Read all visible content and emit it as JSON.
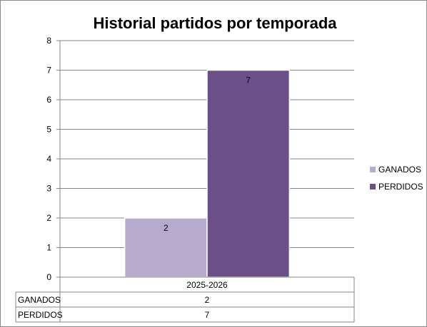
{
  "chart_data": {
    "type": "bar",
    "title": "Historial partidos por temporada",
    "categories": [
      "2025-2026"
    ],
    "series": [
      {
        "name": "GANADOS",
        "values": [
          2
        ],
        "color": "#b7abcd"
      },
      {
        "name": "PERDIDOS",
        "values": [
          7
        ],
        "color": "#6a4f88"
      }
    ],
    "ylim": [
      0,
      8
    ],
    "yticks": [
      0,
      1,
      2,
      3,
      4,
      5,
      6,
      7,
      8
    ],
    "grid": true,
    "legend_position": "right",
    "data_labels": true,
    "data_table": true,
    "xlabel": "",
    "ylabel": ""
  }
}
